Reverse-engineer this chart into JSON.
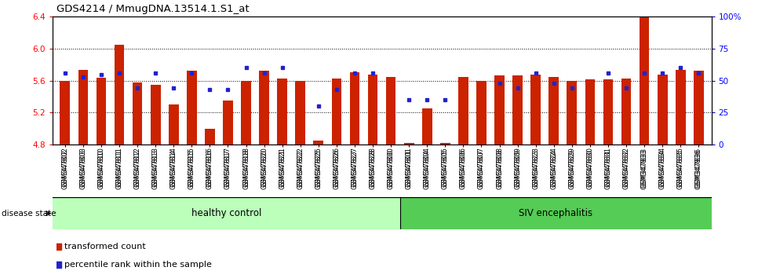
{
  "title": "GDS4214 / MmugDNA.13514.1.S1_at",
  "samples": [
    "GSM347802",
    "GSM347803",
    "GSM347810",
    "GSM347811",
    "GSM347812",
    "GSM347813",
    "GSM347814",
    "GSM347815",
    "GSM347816",
    "GSM347817",
    "GSM347818",
    "GSM347820",
    "GSM347821",
    "GSM347822",
    "GSM347825",
    "GSM347826",
    "GSM347827",
    "GSM347828",
    "GSM347800",
    "GSM347801",
    "GSM347804",
    "GSM347805",
    "GSM347806",
    "GSM347807",
    "GSM347808",
    "GSM347809",
    "GSM347823",
    "GSM347824",
    "GSM347829",
    "GSM347830",
    "GSM347831",
    "GSM347832",
    "GSM347833",
    "GSM347834",
    "GSM347835",
    "GSM347836"
  ],
  "bar_values": [
    5.6,
    5.73,
    5.64,
    6.05,
    5.58,
    5.55,
    5.3,
    5.72,
    5.0,
    5.35,
    5.6,
    5.72,
    5.63,
    5.6,
    4.85,
    5.63,
    5.7,
    5.68,
    5.65,
    4.82,
    5.25,
    4.82,
    5.65,
    5.6,
    5.67,
    5.67,
    5.68,
    5.65,
    5.6,
    5.62,
    5.62,
    5.63,
    6.4,
    5.68,
    5.73,
    5.72
  ],
  "percentile_values": [
    56,
    53,
    55,
    56,
    44,
    56,
    44,
    56,
    43,
    43,
    60,
    56,
    60,
    null,
    30,
    43,
    56,
    56,
    null,
    35,
    35,
    35,
    null,
    null,
    48,
    44,
    56,
    48,
    44,
    null,
    56,
    44,
    56,
    56,
    60,
    56
  ],
  "healthy_count": 19,
  "group1_label": "healthy control",
  "group2_label": "SIV encephalitis",
  "ylim_left": [
    4.8,
    6.4
  ],
  "ylim_right": [
    0,
    100
  ],
  "yticks_left": [
    4.8,
    5.2,
    5.6,
    6.0,
    6.4
  ],
  "yticks_right": [
    0,
    25,
    50,
    75,
    100
  ],
  "ytick_labels_right": [
    "0",
    "25",
    "50",
    "75",
    "100%"
  ],
  "bar_color": "#cc2200",
  "percentile_color": "#2222cc",
  "group1_color": "#bbffbb",
  "group2_color": "#55cc55",
  "bar_base": 4.8,
  "legend_items": [
    "transformed count",
    "percentile rank within the sample"
  ]
}
